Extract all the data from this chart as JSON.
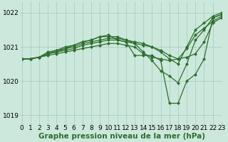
{
  "title": "Graphe pression niveau de la mer (hPa)",
  "bg_color": "#cce8dc",
  "grid_color": "#aacfbe",
  "line_color": "#2d6e2d",
  "xlim": [
    0,
    23
  ],
  "ylim": [
    1018.8,
    1022.3
  ],
  "yticks": [
    1019,
    1020,
    1021,
    1022
  ],
  "xticks": [
    0,
    1,
    2,
    3,
    4,
    5,
    6,
    7,
    8,
    9,
    10,
    11,
    12,
    13,
    14,
    15,
    16,
    17,
    18,
    19,
    20,
    21,
    22,
    23
  ],
  "curves": [
    [
      1020.65,
      1020.65,
      1020.7,
      1020.75,
      1020.8,
      1020.85,
      1020.9,
      1020.95,
      1021.0,
      1021.05,
      1021.1,
      1021.1,
      1021.05,
      1021.0,
      1020.8,
      1020.7,
      1020.65,
      1020.6,
      1020.65,
      1020.7,
      1020.8,
      1021.15,
      1021.7,
      1021.85
    ],
    [
      1020.65,
      1020.65,
      1020.7,
      1020.8,
      1020.85,
      1020.9,
      1020.95,
      1021.05,
      1021.1,
      1021.15,
      1021.2,
      1021.2,
      1021.15,
      1021.1,
      1021.05,
      1021.0,
      1020.9,
      1020.75,
      1020.65,
      1020.95,
      1021.35,
      1021.55,
      1021.75,
      1021.9
    ],
    [
      1020.65,
      1020.65,
      1020.7,
      1020.8,
      1020.85,
      1020.95,
      1021.0,
      1021.1,
      1021.15,
      1021.2,
      1021.25,
      1021.25,
      1021.2,
      1021.15,
      1021.1,
      1021.0,
      1020.85,
      1020.65,
      1020.5,
      1021.0,
      1021.5,
      1021.7,
      1021.9,
      1022.0
    ],
    [
      1020.65,
      1020.65,
      1020.7,
      1020.85,
      1020.9,
      1021.0,
      1021.05,
      1021.15,
      1021.2,
      1021.3,
      1021.3,
      1021.3,
      1021.2,
      1021.1,
      1020.85,
      1020.6,
      1020.3,
      1020.15,
      1019.95,
      1020.5,
      1021.2,
      1021.5,
      1021.85,
      1021.95
    ],
    [
      1020.65,
      1020.65,
      1020.7,
      1020.8,
      1020.9,
      1020.95,
      1021.05,
      1021.15,
      1021.2,
      1021.3,
      1021.35,
      1021.2,
      1021.15,
      1020.75,
      1020.75,
      1020.75,
      1020.6,
      1019.35,
      1019.35,
      1020.0,
      1020.2,
      1020.65,
      1021.85,
      1021.95
    ]
  ],
  "marker": "D",
  "marker_size": 2.0,
  "line_width": 0.9,
  "tick_fontsize": 6.5,
  "label_fontsize": 7.5,
  "label_fontweight": "bold"
}
